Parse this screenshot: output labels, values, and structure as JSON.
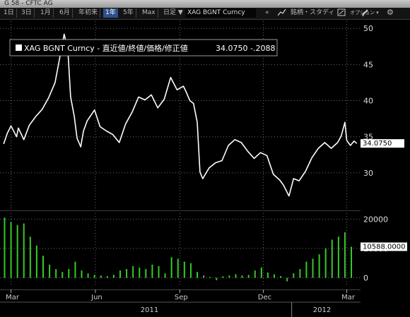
{
  "window": {
    "title": "G 58 - CFTC AG"
  },
  "toolbar": {
    "range_buttons": [
      "1日",
      "3日",
      "1月",
      "6月",
      "年初来",
      "1年",
      "5年",
      "Max"
    ],
    "selected": "1年",
    "frequency": "日足 ▼",
    "security": "XAG BGNT Curncy",
    "collapse": "«",
    "menu_right": "銘柄・スタディ",
    "options": "オプション ▾"
  },
  "colors": {
    "price_line": "#ffffff",
    "volume_bar": "#38c82a",
    "grid": "#6a6a6a",
    "label_bg": "#ffffff"
  },
  "chart_data": [
    {
      "type": "line",
      "title": "XAG BGNT Curncy - 直近値/終値/価格/修正値",
      "last_value_text": "34.0750",
      "change_text": "-.2088",
      "last_value": 34.075,
      "ylim": [
        25,
        51
      ],
      "yticks": [
        30,
        35,
        40,
        45,
        50
      ],
      "grid": true,
      "points": [
        [
          "2011-02-21",
          34.0
        ],
        [
          "2011-02-25",
          35.5
        ],
        [
          "2011-03-01",
          36.5
        ],
        [
          "2011-03-07",
          35.0
        ],
        [
          "2011-03-09",
          36.2
        ],
        [
          "2011-03-15",
          34.6
        ],
        [
          "2011-03-21",
          36.6
        ],
        [
          "2011-03-28",
          37.8
        ],
        [
          "2011-04-04",
          38.8
        ],
        [
          "2011-04-11",
          40.4
        ],
        [
          "2011-04-18",
          42.5
        ],
        [
          "2011-04-25",
          47.2
        ],
        [
          "2011-04-28",
          49.2
        ],
        [
          "2011-05-02",
          47.0
        ],
        [
          "2011-05-05",
          40.5
        ],
        [
          "2011-05-09",
          37.8
        ],
        [
          "2011-05-12",
          34.8
        ],
        [
          "2011-05-16",
          33.6
        ],
        [
          "2011-05-19",
          35.8
        ],
        [
          "2011-05-23",
          37.2
        ],
        [
          "2011-05-31",
          38.7
        ],
        [
          "2011-06-06",
          36.4
        ],
        [
          "2011-06-13",
          35.8
        ],
        [
          "2011-06-20",
          35.3
        ],
        [
          "2011-06-27",
          34.2
        ],
        [
          "2011-07-04",
          36.8
        ],
        [
          "2011-07-11",
          38.4
        ],
        [
          "2011-07-18",
          40.5
        ],
        [
          "2011-07-25",
          40.1
        ],
        [
          "2011-08-01",
          40.8
        ],
        [
          "2011-08-08",
          39.0
        ],
        [
          "2011-08-15",
          40.2
        ],
        [
          "2011-08-22",
          43.2
        ],
        [
          "2011-08-29",
          41.5
        ],
        [
          "2011-09-05",
          42.0
        ],
        [
          "2011-09-08",
          41.2
        ],
        [
          "2011-09-12",
          40.0
        ],
        [
          "2011-09-16",
          39.6
        ],
        [
          "2011-09-20",
          37.0
        ],
        [
          "2011-09-23",
          30.1
        ],
        [
          "2011-09-26",
          29.2
        ],
        [
          "2011-10-03",
          30.7
        ],
        [
          "2011-10-10",
          31.4
        ],
        [
          "2011-10-17",
          31.7
        ],
        [
          "2011-10-24",
          33.8
        ],
        [
          "2011-10-31",
          34.6
        ],
        [
          "2011-11-07",
          34.2
        ],
        [
          "2011-11-14",
          33.0
        ],
        [
          "2011-11-21",
          32.0
        ],
        [
          "2011-11-28",
          32.8
        ],
        [
          "2011-12-05",
          32.4
        ],
        [
          "2011-12-12",
          29.8
        ],
        [
          "2011-12-19",
          29.0
        ],
        [
          "2011-12-23",
          28.3
        ],
        [
          "2011-12-29",
          26.8
        ],
        [
          "2012-01-03",
          29.2
        ],
        [
          "2012-01-09",
          28.9
        ],
        [
          "2012-01-16",
          30.2
        ],
        [
          "2012-01-23",
          32.1
        ],
        [
          "2012-01-30",
          33.4
        ],
        [
          "2012-02-06",
          34.2
        ],
        [
          "2012-02-13",
          33.4
        ],
        [
          "2012-02-20",
          34.2
        ],
        [
          "2012-02-24",
          35.1
        ],
        [
          "2012-02-28",
          37.0
        ],
        [
          "2012-03-01",
          34.5
        ],
        [
          "2012-03-05",
          33.8
        ],
        [
          "2012-03-09",
          34.4
        ],
        [
          "2012-03-12",
          34.075
        ]
      ]
    },
    {
      "type": "bar",
      "last_value_text": "10588.0000",
      "last_value": 10588,
      "ylim": [
        -3000,
        22000
      ],
      "yticks": [
        0,
        10000,
        20000
      ],
      "grid": true,
      "bars": [
        [
          "2011-02-22",
          20500
        ],
        [
          "2011-03-01",
          19000
        ],
        [
          "2011-03-08",
          18000
        ],
        [
          "2011-03-15",
          18500
        ],
        [
          "2011-03-22",
          14000
        ],
        [
          "2011-03-29",
          11000
        ],
        [
          "2011-04-05",
          7500
        ],
        [
          "2011-04-12",
          4500
        ],
        [
          "2011-04-19",
          3000
        ],
        [
          "2011-04-26",
          2000
        ],
        [
          "2011-05-03",
          3000
        ],
        [
          "2011-05-10",
          5500
        ],
        [
          "2011-05-17",
          2500
        ],
        [
          "2011-05-24",
          1500
        ],
        [
          "2011-05-31",
          1000
        ],
        [
          "2011-06-07",
          800
        ],
        [
          "2011-06-14",
          600
        ],
        [
          "2011-06-21",
          1000
        ],
        [
          "2011-06-28",
          2500
        ],
        [
          "2011-07-05",
          3000
        ],
        [
          "2011-07-12",
          4000
        ],
        [
          "2011-07-19",
          3500
        ],
        [
          "2011-07-26",
          3000
        ],
        [
          "2011-08-02",
          4500
        ],
        [
          "2011-08-09",
          4000
        ],
        [
          "2011-08-16",
          1500
        ],
        [
          "2011-08-23",
          7000
        ],
        [
          "2011-08-30",
          6500
        ],
        [
          "2011-09-06",
          5500
        ],
        [
          "2011-09-13",
          5000
        ],
        [
          "2011-09-20",
          2000
        ],
        [
          "2011-09-27",
          800
        ],
        [
          "2011-10-04",
          300
        ],
        [
          "2011-10-11",
          -800
        ],
        [
          "2011-10-18",
          500
        ],
        [
          "2011-10-25",
          800
        ],
        [
          "2011-11-01",
          1200
        ],
        [
          "2011-11-08",
          800
        ],
        [
          "2011-11-15",
          1000
        ],
        [
          "2011-11-22",
          2500
        ],
        [
          "2011-11-29",
          3500
        ],
        [
          "2011-12-06",
          1800
        ],
        [
          "2011-12-13",
          1200
        ],
        [
          "2011-12-20",
          600
        ],
        [
          "2011-12-27",
          -1200
        ],
        [
          "2012-01-03",
          1500
        ],
        [
          "2012-01-10",
          3000
        ],
        [
          "2012-01-17",
          5500
        ],
        [
          "2012-01-24",
          6500
        ],
        [
          "2012-01-31",
          8000
        ],
        [
          "2012-02-07",
          10000
        ],
        [
          "2012-02-14",
          13000
        ],
        [
          "2012-02-21",
          14000
        ],
        [
          "2012-02-28",
          15500
        ],
        [
          "2012-03-06",
          10588
        ]
      ]
    }
  ],
  "time_axis": {
    "months": [
      {
        "date": "2011-03-01",
        "label": "Mar"
      },
      {
        "date": "2011-06-01",
        "label": "Jun"
      },
      {
        "date": "2011-09-01",
        "label": "Sep"
      },
      {
        "date": "2011-12-01",
        "label": "Dec"
      },
      {
        "date": "2012-03-01",
        "label": "Mar"
      }
    ],
    "years": [
      {
        "center": "2011-07-30",
        "label": "2011"
      },
      {
        "center": "2012-02-03",
        "label": "2012"
      }
    ],
    "year_divider": "2012-01-01",
    "start": "2011-02-17",
    "end": "2012-03-16"
  }
}
